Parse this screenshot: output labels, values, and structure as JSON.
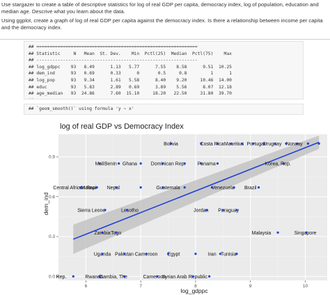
{
  "instructions": {
    "line1": "Use stargazer to create a table of descriptive statistics for log of real GDP per capita, democracy index, log of population, education and median age. Descrive what you learn about the data.",
    "line2": "Using ggplot, create a graph of log of real GDP per capita against the democracy index. Is there a relationship between income per capita and the democracy index."
  },
  "stats_table": {
    "prefix": "##",
    "separator": "=============================================================",
    "separator_bottom": "-------------------------------------------------------------",
    "header": [
      "Statistic",
      "N",
      "Mean",
      "St. Dev.",
      "Min",
      "Pctl(25)",
      "Median",
      "Pctl(75)",
      "Max"
    ],
    "rows": [
      [
        "log_gdppc",
        "93",
        "8.49",
        "1.13",
        "5.77",
        "7.55",
        "8.58",
        "9.51",
        "10.25"
      ],
      [
        "dem_ind",
        "93",
        "0.69",
        "0.33",
        "0",
        "0.5",
        "0.8",
        "1",
        "1"
      ],
      [
        "log_pop",
        "93",
        "9.34",
        "1.61",
        "5.58",
        "8.40",
        "9.20",
        "10.46",
        "14.00"
      ],
      [
        "educ",
        "93",
        "5.83",
        "2.89",
        "0.69",
        "3.89",
        "5.56",
        "8.07",
        "12.18"
      ],
      [
        "age_median",
        "93",
        "24.86",
        "7.60",
        "15.10",
        "18.20",
        "22.50",
        "31.80",
        "39.70"
      ]
    ]
  },
  "message": "## `geom_smooth()` using formula 'y ~ x'",
  "chart_data": {
    "type": "scatter",
    "title": "log of real GDP vs Democracy Index",
    "xlabel": "log_gdppc",
    "ylabel": "dem_ind",
    "xlim": [
      5.5,
      10.4
    ],
    "ylim": [
      -0.03,
      1.07
    ],
    "x_ticks": [
      "6",
      "7",
      "8",
      "9",
      "10"
    ],
    "y_ticks": [
      "0.0",
      "0.3",
      "0.6",
      "0.9"
    ],
    "grid": true,
    "background": "#ebebeb",
    "point_color": "#1f3fd6",
    "fit": {
      "method": "lm",
      "x": [
        5.77,
        10.25
      ],
      "y": [
        0.28,
        1.01
      ],
      "ci_low": [
        0.17,
        0.96
      ],
      "ci_high": [
        0.39,
        1.06
      ],
      "line_color": "#1f3fd6",
      "band_color": "#bdbdbd"
    },
    "labels": [
      {
        "text": "Bolivia",
        "x": 7.55,
        "y": 1.0
      },
      {
        "text": "Costa Rica",
        "x": 8.3,
        "y": 1.0
      },
      {
        "text": "Mauritius",
        "x": 8.7,
        "y": 1.0
      },
      {
        "text": "Portugal",
        "x": 9.1,
        "y": 1.0
      },
      {
        "text": "Uruguay",
        "x": 9.4,
        "y": 1.0
      },
      {
        "text": "Norway",
        "x": 9.8,
        "y": 1.0
      },
      {
        "text": "Mali",
        "x": 6.25,
        "y": 0.85
      },
      {
        "text": "Benin",
        "x": 6.45,
        "y": 0.85
      },
      {
        "text": "Ghana",
        "x": 6.8,
        "y": 0.85
      },
      {
        "text": "Dominican Rep.",
        "x": 7.5,
        "y": 0.85
      },
      {
        "text": "Panama",
        "x": 8.2,
        "y": 0.85
      },
      {
        "text": "Korea, Rep.",
        "x": 9.5,
        "y": 0.85
      },
      {
        "text": "Central African Rep.",
        "x": 5.8,
        "y": 0.67
      },
      {
        "text": "Malawi",
        "x": 6.05,
        "y": 0.67
      },
      {
        "text": "Nepal",
        "x": 6.5,
        "y": 0.67
      },
      {
        "text": "Guatemala",
        "x": 7.5,
        "y": 0.67
      },
      {
        "text": "Venezuela",
        "x": 8.5,
        "y": 0.67
      },
      {
        "text": "Brazil",
        "x": 9.0,
        "y": 0.67
      },
      {
        "text": "Sierra Leone",
        "x": 6.1,
        "y": 0.5
      },
      {
        "text": "Lesotho",
        "x": 6.8,
        "y": 0.5
      },
      {
        "text": "Jordan",
        "x": 8.1,
        "y": 0.5
      },
      {
        "text": "Paraguay",
        "x": 8.6,
        "y": 0.5
      },
      {
        "text": "Zambia",
        "x": 6.3,
        "y": 0.33
      },
      {
        "text": "Togo",
        "x": 6.55,
        "y": 0.33
      },
      {
        "text": "Malaysia",
        "x": 9.2,
        "y": 0.33
      },
      {
        "text": "Singapore",
        "x": 10.0,
        "y": 0.33
      },
      {
        "text": "Uganda",
        "x": 6.3,
        "y": 0.17
      },
      {
        "text": "Pakistan",
        "x": 6.7,
        "y": 0.17
      },
      {
        "text": "Cameroon",
        "x": 7.1,
        "y": 0.17
      },
      {
        "text": "Egypt",
        "x": 7.6,
        "y": 0.17
      },
      {
        "text": "Iran",
        "x": 8.3,
        "y": 0.17
      },
      {
        "text": "Tunisia",
        "x": 8.6,
        "y": 0.17
      },
      {
        "text": "Rep.",
        "x": 5.55,
        "y": 0.0
      },
      {
        "text": "Rwanda",
        "x": 6.15,
        "y": 0.0
      },
      {
        "text": "Gambia, The",
        "x": 6.5,
        "y": 0.0
      },
      {
        "text": "Cameroon",
        "x": 7.25,
        "y": 0.0
      },
      {
        "text": "Syrian Arab Republic",
        "x": 7.8,
        "y": 0.0
      }
    ],
    "points": [
      {
        "x": 7.55,
        "y": 1.0
      },
      {
        "x": 8.1,
        "y": 1.0
      },
      {
        "x": 8.4,
        "y": 1.0
      },
      {
        "x": 8.65,
        "y": 1.0
      },
      {
        "x": 8.85,
        "y": 1.0
      },
      {
        "x": 9.05,
        "y": 1.0
      },
      {
        "x": 9.25,
        "y": 1.0
      },
      {
        "x": 9.45,
        "y": 1.0
      },
      {
        "x": 9.65,
        "y": 1.0
      },
      {
        "x": 9.85,
        "y": 1.0
      },
      {
        "x": 10.05,
        "y": 1.0
      },
      {
        "x": 10.25,
        "y": 1.0
      },
      {
        "x": 6.25,
        "y": 0.85
      },
      {
        "x": 6.6,
        "y": 0.85
      },
      {
        "x": 7.0,
        "y": 0.85
      },
      {
        "x": 7.4,
        "y": 0.85
      },
      {
        "x": 7.8,
        "y": 0.85
      },
      {
        "x": 8.1,
        "y": 0.85
      },
      {
        "x": 8.4,
        "y": 0.85
      },
      {
        "x": 9.6,
        "y": 0.85
      },
      {
        "x": 5.9,
        "y": 0.67
      },
      {
        "x": 6.2,
        "y": 0.67
      },
      {
        "x": 6.55,
        "y": 0.67
      },
      {
        "x": 7.0,
        "y": 0.67
      },
      {
        "x": 7.4,
        "y": 0.67
      },
      {
        "x": 7.8,
        "y": 0.67
      },
      {
        "x": 8.3,
        "y": 0.67
      },
      {
        "x": 8.7,
        "y": 0.67
      },
      {
        "x": 9.15,
        "y": 0.67
      },
      {
        "x": 6.35,
        "y": 0.5
      },
      {
        "x": 6.75,
        "y": 0.5
      },
      {
        "x": 8.2,
        "y": 0.5
      },
      {
        "x": 8.5,
        "y": 0.5
      },
      {
        "x": 8.75,
        "y": 0.5
      },
      {
        "x": 6.3,
        "y": 0.33
      },
      {
        "x": 6.55,
        "y": 0.33
      },
      {
        "x": 9.5,
        "y": 0.33
      },
      {
        "x": 10.02,
        "y": 0.33
      },
      {
        "x": 6.3,
        "y": 0.17
      },
      {
        "x": 6.7,
        "y": 0.17
      },
      {
        "x": 7.1,
        "y": 0.17
      },
      {
        "x": 7.5,
        "y": 0.17
      },
      {
        "x": 8.0,
        "y": 0.17
      },
      {
        "x": 8.45,
        "y": 0.17
      },
      {
        "x": 8.75,
        "y": 0.17
      },
      {
        "x": 5.77,
        "y": 0.0
      },
      {
        "x": 6.25,
        "y": 0.0
      },
      {
        "x": 6.7,
        "y": 0.0
      },
      {
        "x": 7.3,
        "y": 0.0
      },
      {
        "x": 7.95,
        "y": 0.0
      },
      {
        "x": 8.25,
        "y": 0.0
      }
    ]
  }
}
